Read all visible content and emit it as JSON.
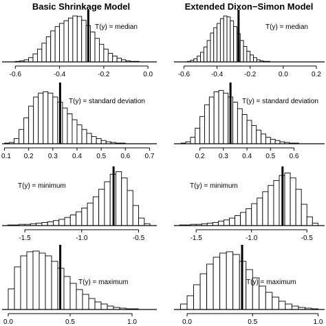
{
  "chart_data": [
    {
      "type": "bar",
      "title": "Basic Shrinkage Model",
      "annotation": "T(y) = median",
      "xlim": [
        -0.66,
        0.04
      ],
      "xticks": [
        -0.6,
        -0.4,
        -0.2,
        0.0
      ],
      "ticklabels": [
        "-0.6",
        "-0.4",
        "-0.2",
        "0.0"
      ],
      "bins": [
        -0.62,
        -0.6,
        -0.58,
        -0.56,
        -0.54,
        -0.52,
        -0.5,
        -0.48,
        -0.46,
        -0.44,
        -0.42,
        -0.4,
        -0.38,
        -0.36,
        -0.34,
        -0.32,
        -0.3,
        -0.28,
        -0.26,
        -0.24,
        -0.22,
        -0.2,
        -0.18,
        -0.16,
        -0.14,
        -0.12,
        -0.1,
        -0.08,
        -0.06,
        -0.04,
        -0.02,
        0.0
      ],
      "counts": [
        0,
        1,
        2,
        4,
        8,
        15,
        24,
        35,
        47,
        58,
        66,
        72,
        77,
        82,
        86,
        85,
        78,
        68,
        56,
        44,
        33,
        24,
        16,
        11,
        7,
        4,
        2,
        1,
        1,
        0,
        0
      ],
      "observed": -0.27
    },
    {
      "type": "bar",
      "title": "Extended Dixon−Simon Model",
      "annotation": "T(y) = median",
      "xlim": [
        -0.66,
        0.25
      ],
      "xticks": [
        -0.6,
        -0.4,
        -0.2,
        0.0,
        0.2
      ],
      "ticklabels": [
        "-0.6",
        "-0.4",
        "-0.2",
        "0.0",
        "0.2"
      ],
      "bins": [
        -0.6,
        -0.58,
        -0.56,
        -0.54,
        -0.52,
        -0.5,
        -0.48,
        -0.46,
        -0.44,
        -0.42,
        -0.4,
        -0.38,
        -0.36,
        -0.34,
        -0.32,
        -0.3,
        -0.28,
        -0.26,
        -0.24,
        -0.22,
        -0.2,
        -0.18,
        -0.16,
        -0.14,
        -0.12,
        -0.1,
        -0.08,
        -0.06
      ],
      "counts": [
        0,
        1,
        3,
        6,
        11,
        18,
        28,
        40,
        54,
        64,
        72,
        81,
        86,
        84,
        77,
        66,
        53,
        40,
        29,
        20,
        13,
        8,
        4,
        2,
        1,
        1,
        0
      ],
      "observed": -0.27
    },
    {
      "type": "bar",
      "title": "",
      "annotation": "T(y) = standard deviation",
      "xlim": [
        0.09,
        0.73
      ],
      "xticks": [
        0.1,
        0.2,
        0.3,
        0.4,
        0.5,
        0.6,
        0.7
      ],
      "ticklabels": [
        "0.1",
        "0.2",
        "0.3",
        "0.4",
        "0.5",
        "0.6",
        "0.7"
      ],
      "bins": [
        0.1,
        0.12,
        0.14,
        0.16,
        0.18,
        0.2,
        0.22,
        0.24,
        0.26,
        0.28,
        0.3,
        0.32,
        0.34,
        0.36,
        0.38,
        0.4,
        0.42,
        0.44,
        0.46,
        0.48,
        0.5,
        0.52,
        0.54,
        0.56,
        0.58,
        0.6,
        0.62,
        0.64,
        0.66,
        0.68,
        0.7
      ],
      "counts": [
        1,
        2,
        8,
        22,
        40,
        58,
        72,
        78,
        80,
        78,
        72,
        64,
        55,
        46,
        37,
        29,
        22,
        16,
        11,
        8,
        5,
        3,
        2,
        1,
        1,
        0,
        0,
        0,
        0,
        0
      ],
      "observed": 0.33
    },
    {
      "type": "bar",
      "title": "",
      "annotation": "T(y) = standard deviation",
      "xlim": [
        0.09,
        0.73
      ],
      "xticks": [
        0.2,
        0.3,
        0.4,
        0.5,
        0.6
      ],
      "ticklabels": [
        "0.2",
        "0.3",
        "0.4",
        "0.5",
        "0.6"
      ],
      "bins": [
        0.12,
        0.14,
        0.16,
        0.18,
        0.2,
        0.22,
        0.24,
        0.26,
        0.28,
        0.3,
        0.32,
        0.34,
        0.36,
        0.38,
        0.4,
        0.42,
        0.44,
        0.46,
        0.48,
        0.5,
        0.52,
        0.54,
        0.56,
        0.58,
        0.6,
        0.62,
        0.64,
        0.66,
        0.68
      ],
      "counts": [
        1,
        3,
        10,
        24,
        42,
        60,
        72,
        80,
        82,
        78,
        72,
        64,
        54,
        45,
        36,
        28,
        21,
        15,
        10,
        7,
        5,
        3,
        2,
        1,
        1,
        0,
        0,
        0
      ],
      "observed": 0.33
    },
    {
      "type": "bar",
      "title": "",
      "annotation": "T(y) = minimum",
      "xlim": [
        -1.7,
        -0.34
      ],
      "xticks": [
        -1.5,
        -1.0,
        -0.5
      ],
      "ticklabels": [
        "-1.5",
        "-1.0",
        "-0.5"
      ],
      "bins": [
        -1.7,
        -1.65,
        -1.6,
        -1.55,
        -1.5,
        -1.45,
        -1.4,
        -1.35,
        -1.3,
        -1.25,
        -1.2,
        -1.15,
        -1.1,
        -1.05,
        -1.0,
        -0.95,
        -0.9,
        -0.85,
        -0.8,
        -0.75,
        -0.7,
        -0.65,
        -0.6,
        -0.55,
        -0.5,
        -0.45,
        -0.4
      ],
      "counts": [
        0,
        1,
        1,
        2,
        2,
        3,
        4,
        5,
        6,
        8,
        10,
        13,
        17,
        22,
        28,
        36,
        46,
        58,
        70,
        82,
        86,
        76,
        56,
        32,
        12,
        3
      ],
      "observed": -0.72
    },
    {
      "type": "bar",
      "title": "",
      "annotation": "T(y) = minimum",
      "xlim": [
        -1.7,
        -0.34
      ],
      "xticks": [
        -1.5,
        -1.0,
        -0.5
      ],
      "ticklabels": [
        "-1.5",
        "-1.0",
        "-0.5"
      ],
      "bins": [
        -1.7,
        -1.65,
        -1.6,
        -1.55,
        -1.5,
        -1.45,
        -1.4,
        -1.35,
        -1.3,
        -1.25,
        -1.2,
        -1.15,
        -1.1,
        -1.05,
        -1.0,
        -0.95,
        -0.9,
        -0.85,
        -0.8,
        -0.75,
        -0.7,
        -0.65,
        -0.6,
        -0.55,
        -0.5,
        -0.45,
        -0.4
      ],
      "counts": [
        0,
        1,
        1,
        2,
        2,
        3,
        4,
        5,
        7,
        9,
        12,
        16,
        21,
        27,
        35,
        44,
        54,
        64,
        72,
        80,
        84,
        76,
        58,
        34,
        14,
        4
      ],
      "observed": -0.72
    },
    {
      "type": "bar",
      "title": "",
      "annotation": "T(y) = maximum",
      "xlim": [
        -0.05,
        1.2
      ],
      "xticks": [
        0.0,
        0.5,
        1.0
      ],
      "ticklabels": [
        "0.0",
        "0.5",
        "1.0"
      ],
      "bins": [
        0.0,
        0.05,
        0.1,
        0.15,
        0.2,
        0.25,
        0.3,
        0.35,
        0.4,
        0.45,
        0.5,
        0.55,
        0.6,
        0.65,
        0.7,
        0.75,
        0.8,
        0.85,
        0.9,
        0.95,
        1.0,
        1.05,
        1.1,
        1.15
      ],
      "counts": [
        30,
        62,
        78,
        84,
        85,
        82,
        78,
        70,
        60,
        48,
        38,
        29,
        22,
        16,
        11,
        8,
        5,
        3,
        2,
        1,
        1,
        0,
        0
      ],
      "observed": 0.42
    },
    {
      "type": "bar",
      "title": "",
      "annotation": "T(y) = maximum",
      "xlim": [
        -0.1,
        1.05
      ],
      "xticks": [
        0.0,
        0.5,
        1.0
      ],
      "ticklabels": [
        "0.0",
        "0.5",
        "1.0"
      ],
      "bins": [
        -0.05,
        0.0,
        0.05,
        0.1,
        0.15,
        0.2,
        0.25,
        0.3,
        0.35,
        0.4,
        0.45,
        0.5,
        0.55,
        0.6,
        0.65,
        0.7,
        0.75,
        0.8,
        0.85,
        0.9,
        0.95,
        1.0
      ],
      "counts": [
        8,
        20,
        36,
        52,
        66,
        76,
        82,
        84,
        80,
        70,
        58,
        46,
        34,
        25,
        18,
        12,
        8,
        5,
        3,
        2,
        1
      ],
      "observed": 0.42
    }
  ]
}
